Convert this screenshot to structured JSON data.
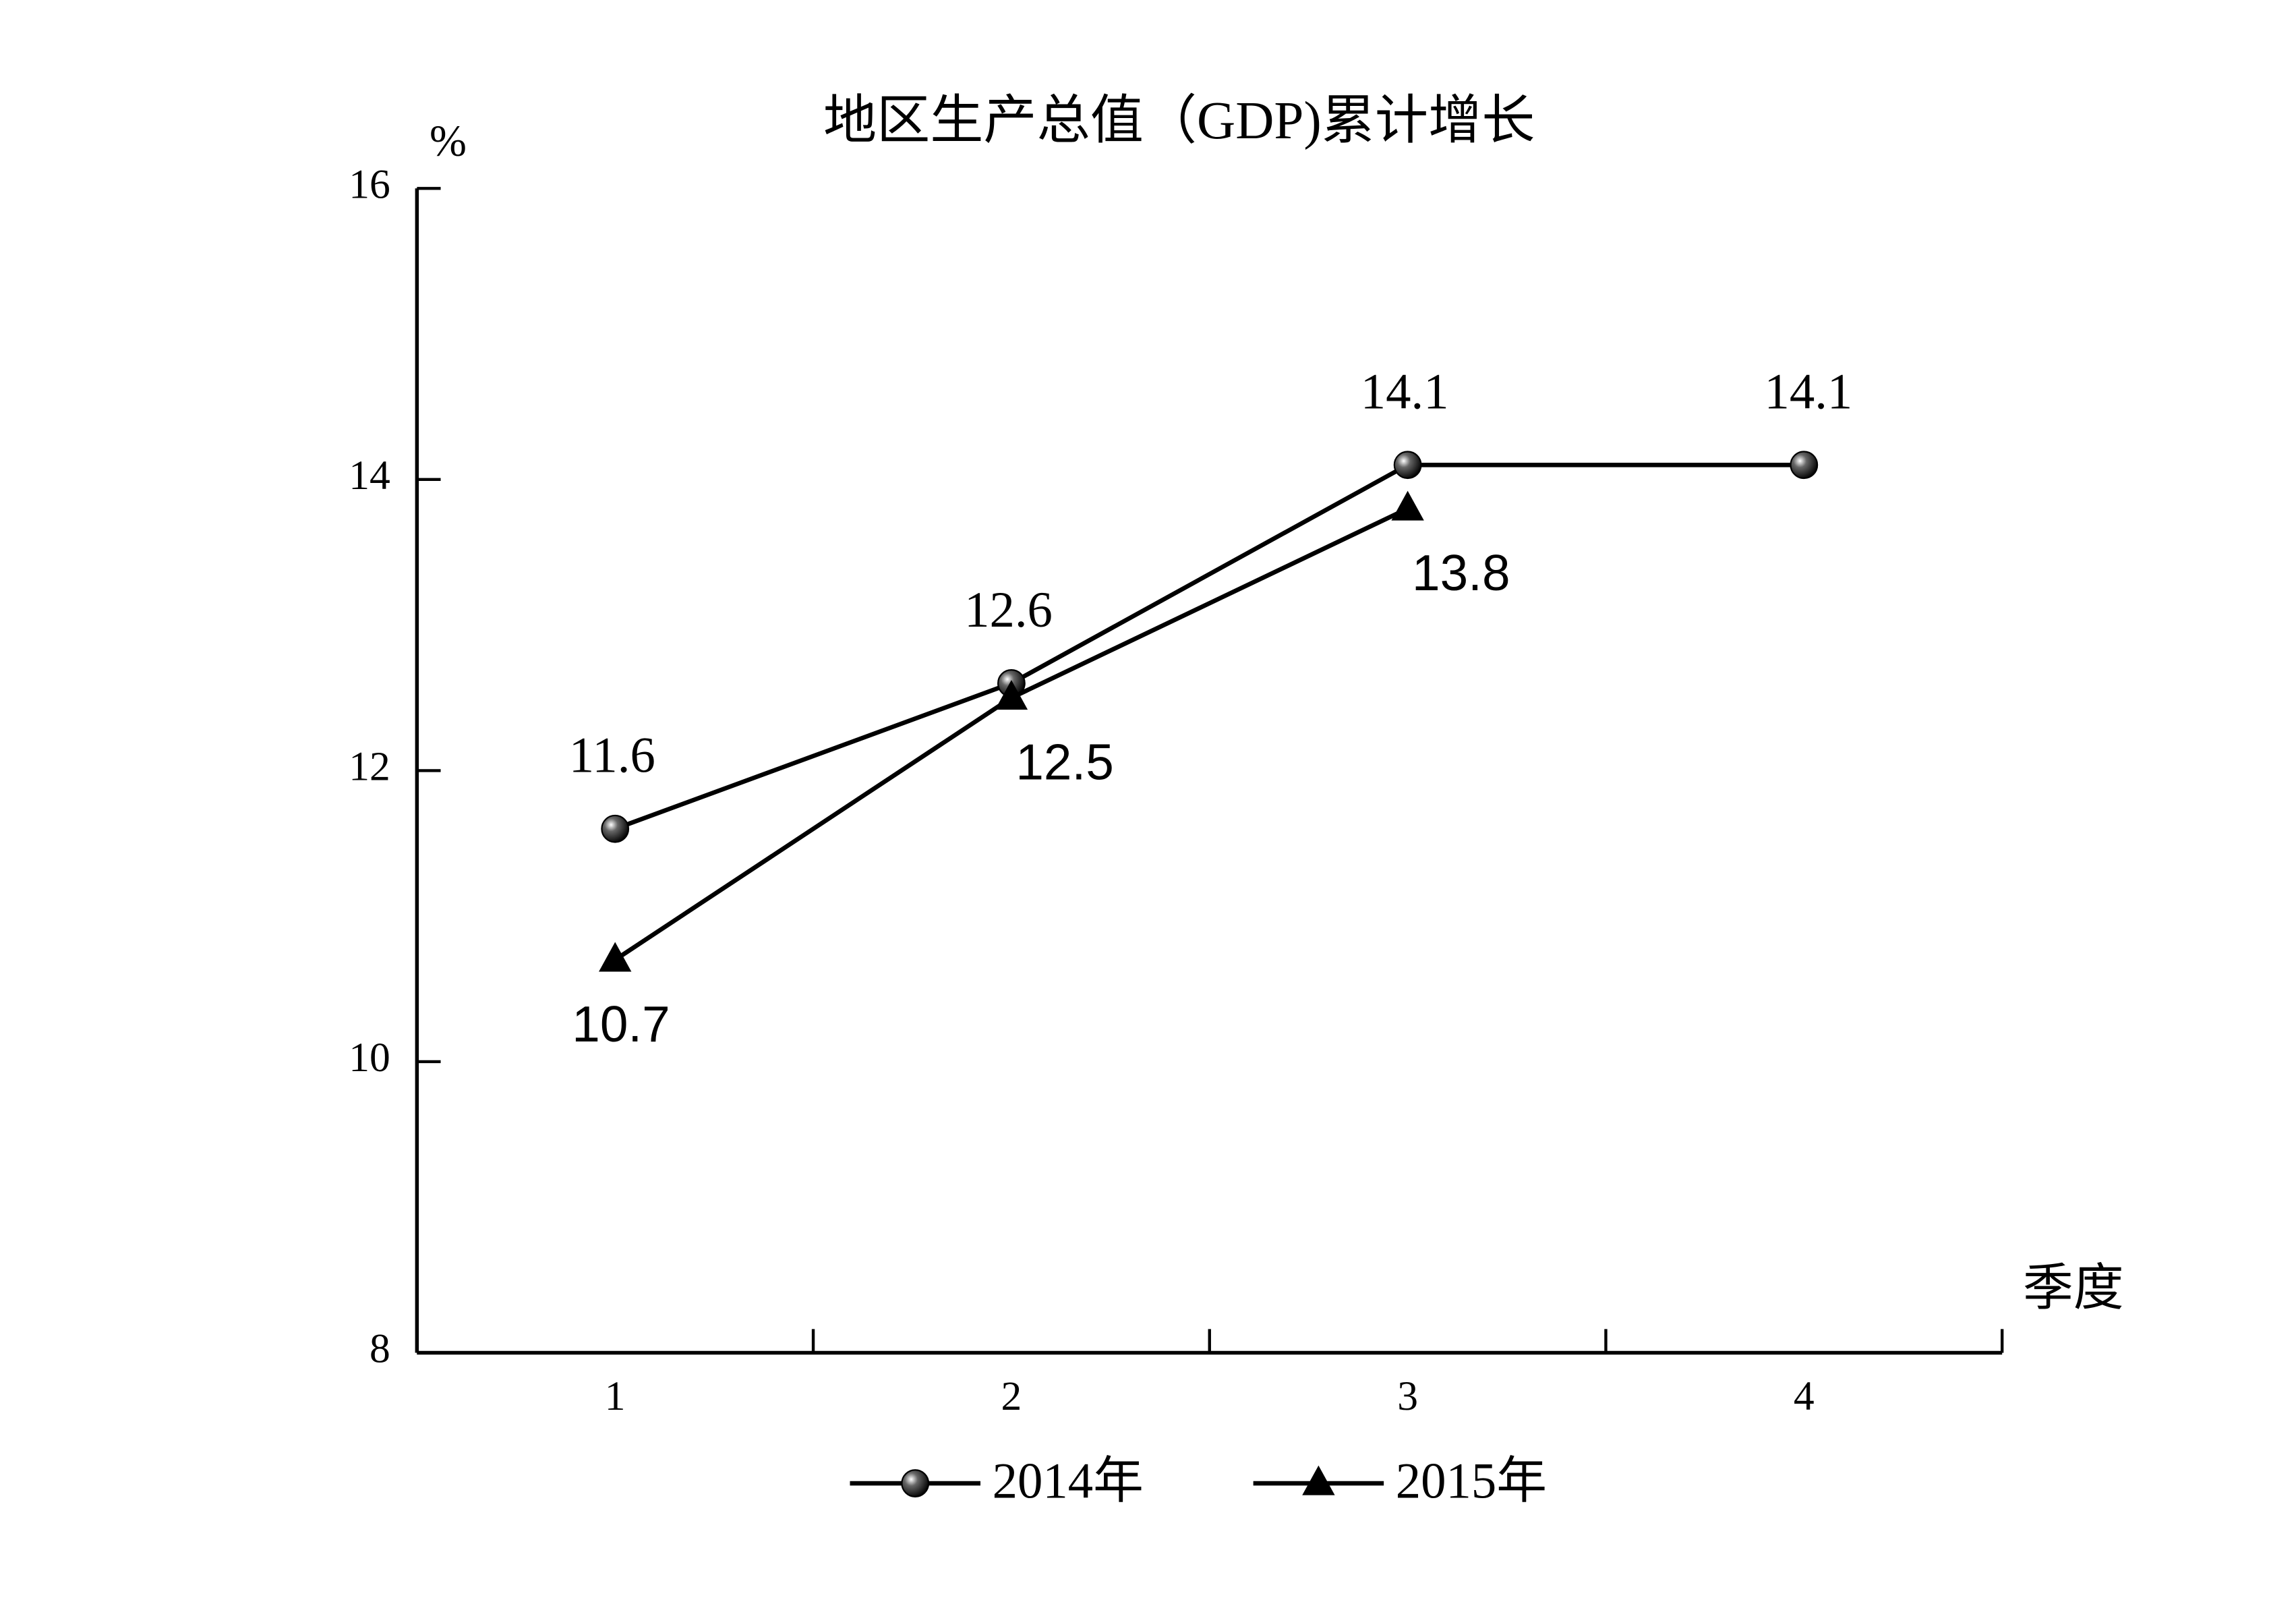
{
  "chart_data": {
    "type": "line",
    "title": "地区生产总值（GDP)累计增长",
    "y_label": "%",
    "x_label": "季度",
    "categories": [
      "1",
      "2",
      "3",
      "4"
    ],
    "series": [
      {
        "name": "2014年",
        "color": "#000000",
        "marker": "circle",
        "values": [
          11.6,
          12.6,
          14.1,
          14.1
        ]
      },
      {
        "name": "2015年",
        "color": "#000000",
        "marker": "triangle",
        "values": [
          10.7,
          12.5,
          13.8,
          null
        ]
      }
    ],
    "ylim": [
      8,
      16
    ],
    "yticks": [
      8,
      10,
      12,
      14,
      16
    ],
    "grid": false
  }
}
